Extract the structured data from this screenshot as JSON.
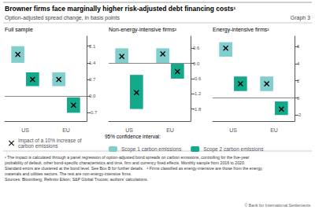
{
  "title": "Browner firms face marginally higher risk-adjusted debt financing costs¹",
  "subtitle": "Option-adjusted spread change, in basis points",
  "graph_label": "Graph 3",
  "point_label": "Impact of a 10% increase of\ncarbon emissions",
  "legend_title": "95% confidence interval:",
  "legend": "bottom",
  "footnotes": [
    "¹ The impact is calculated through a panel regression of option-adjusted bond spreads on carbon emissions, controlling for the five-year",
    "probability of default, other bond-specific characteristics and time, firm and currency fixed effects. Monthly sample from 2016 to 2020.",
    "Standard errors are clustered at the bond level. See Box B for further details.   ² Firms classified as energy-intensive are those from the energy,",
    "materials and utilities sectors. The rest are non-energy-intensive firms."
  ],
  "sources": "Sources: Bloomberg; Refinitiv Eikon; S&P Global Trucost; authors’ calculations.",
  "copyright": "© Bank for International Settlements",
  "chart_data": [
    {
      "type": "bar",
      "title": "Full sample",
      "categories": [
        "US",
        "EU"
      ],
      "ylim": [
        -1.05,
        2.52
      ],
      "yticks": [
        -0.7,
        {
          "value": 0,
          "label": "0.0"
        },
        0.7,
        1.4,
        2.1
      ],
      "grid": false,
      "marker": "x",
      "series": [
        {
          "name": "Scope 1 carbon emissions",
          "color": "#80cece",
          "low": [
            1.4,
            0.42
          ],
          "high": [
            2.1,
            1.0
          ],
          "point": [
            1.75,
            0.7
          ]
        },
        {
          "name": "Scope 2 carbon emissions",
          "color": "#12aa8a",
          "low": [
            0.42,
            -0.7
          ],
          "high": [
            1.0,
            -0.05
          ],
          "point": [
            0.7,
            -0.38
          ]
        }
      ]
    },
    {
      "type": "bar",
      "title": "Non-energy-intensive firms²",
      "categories": [
        "US",
        "EU"
      ],
      "ylim": [
        -2.28,
        1.08
      ],
      "yticks": [
        -1.8,
        -1.2,
        -0.6,
        {
          "value": 0,
          "label": "0.0"
        },
        0.6
      ],
      "grid": false,
      "marker": "x",
      "series": [
        {
          "name": "Scope 1 carbon emissions",
          "color": "#80cece",
          "low": [
            0.0,
            0.0
          ],
          "high": [
            0.6,
            0.6
          ],
          "point": [
            0.28,
            0.38
          ]
        },
        {
          "name": "Scope 2 carbon emissions",
          "color": "#12aa8a",
          "low": [
            -1.8,
            -0.6
          ],
          "high": [
            -0.45,
            0.0
          ],
          "point": [
            -1.15,
            -0.32
          ]
        }
      ]
    },
    {
      "type": "bar",
      "title": "Energy-intensive firms²",
      "categories": [
        "US",
        "EU"
      ],
      "ylim": [
        -2.7,
        7.2
      ],
      "yticks": [
        -2,
        0,
        2,
        4,
        6
      ],
      "grid": false,
      "marker": "x",
      "series": [
        {
          "name": "Scope 1 carbon emissions",
          "color": "#80cece",
          "low": [
            4.8,
            0.8
          ],
          "high": [
            6.5,
            2.5
          ],
          "point": [
            5.8,
            1.65
          ]
        },
        {
          "name": "Scope 2 carbon emissions",
          "color": "#12aa8a",
          "low": [
            0.8,
            -2.0
          ],
          "high": [
            2.5,
            -0.4
          ],
          "point": [
            1.65,
            -1.3
          ]
        }
      ]
    }
  ]
}
